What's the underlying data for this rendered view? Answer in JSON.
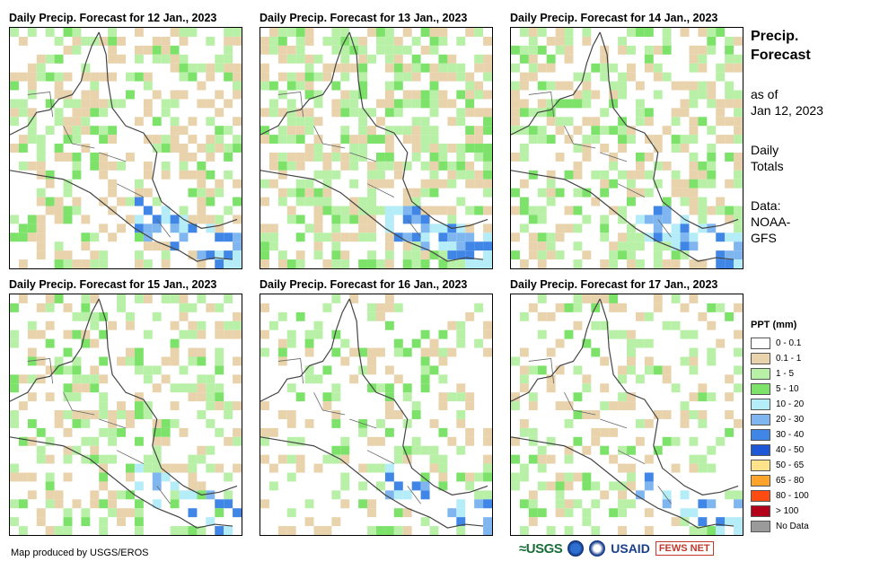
{
  "panels": [
    {
      "title": "Daily Precip. Forecast for 12 Jan., 2023",
      "seed": 3,
      "wet": 0.55,
      "heavy": 0.2
    },
    {
      "title": "Daily Precip. Forecast for 13 Jan., 2023",
      "seed": 7,
      "wet": 0.65,
      "heavy": 0.3
    },
    {
      "title": "Daily Precip. Forecast for 14 Jan., 2023",
      "seed": 11,
      "wet": 0.6,
      "heavy": 0.25
    },
    {
      "title": "Daily Precip. Forecast for 15 Jan., 2023",
      "seed": 17,
      "wet": 0.45,
      "heavy": 0.12
    },
    {
      "title": "Daily Precip. Forecast for 16 Jan., 2023",
      "seed": 23,
      "wet": 0.35,
      "heavy": 0.15
    },
    {
      "title": "Daily Precip. Forecast for 17 Jan., 2023",
      "seed": 29,
      "wet": 0.4,
      "heavy": 0.18
    }
  ],
  "side": {
    "title_line1": "Precip.",
    "title_line2": "Forecast",
    "asof_line1": "as of",
    "asof_line2": "Jan 12, 2023",
    "daily_line1": "Daily",
    "daily_line2": "Totals",
    "data_line1": "Data:",
    "data_line2": "NOAA-",
    "data_line3": "GFS"
  },
  "legend": {
    "title": "PPT (mm)",
    "items": [
      {
        "label": "0 - 0.1",
        "color": "#ffffff"
      },
      {
        "label": "0.1 - 1",
        "color": "#e8d3ad"
      },
      {
        "label": "1 - 5",
        "color": "#b9f0a8"
      },
      {
        "label": "5 - 10",
        "color": "#7de26a"
      },
      {
        "label": "10 - 20",
        "color": "#b4ecf8"
      },
      {
        "label": "20 - 30",
        "color": "#7fb6f0"
      },
      {
        "label": "30 - 40",
        "color": "#3f86e6"
      },
      {
        "label": "40 - 50",
        "color": "#1f58d6"
      },
      {
        "label": "50 - 65",
        "color": "#ffe38a"
      },
      {
        "label": "65 - 80",
        "color": "#ffa32b"
      },
      {
        "label": "80 - 100",
        "color": "#ff4a12"
      },
      {
        "label": "> 100",
        "color": "#b3001b"
      },
      {
        "label": "No Data",
        "color": "#9a9a9a"
      }
    ]
  },
  "credit": "Map produced by USGS/EROS",
  "logos": {
    "usgs": "≈USGS",
    "usaid": "USAID",
    "fews": "FEWS NET"
  }
}
